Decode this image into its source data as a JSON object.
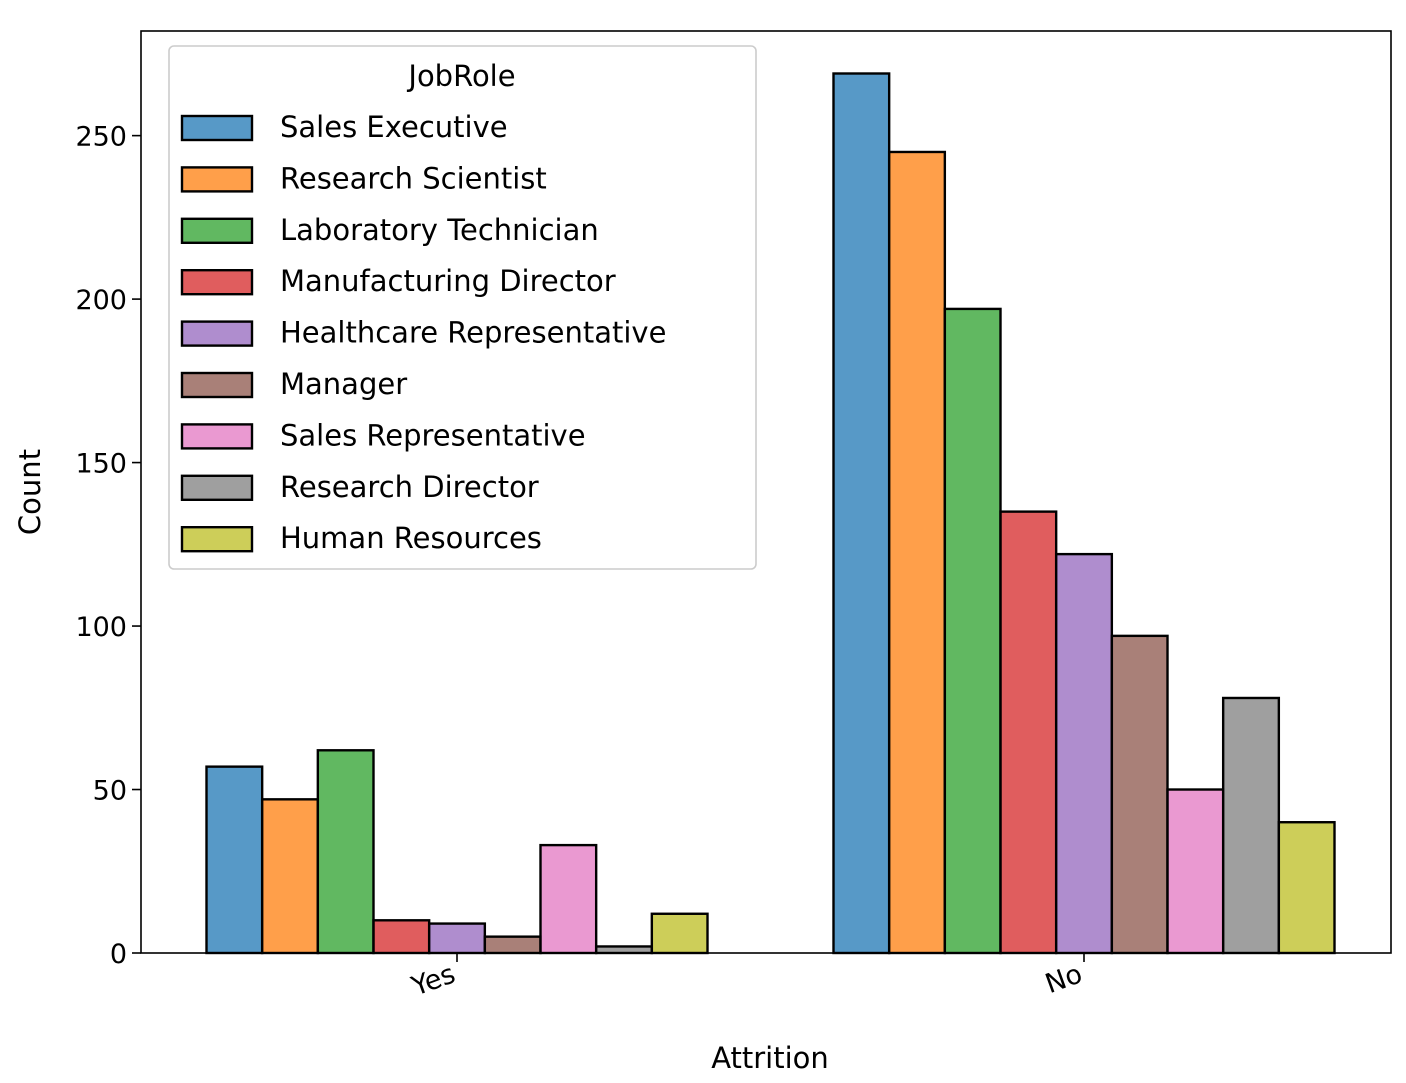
{
  "chart_data": {
    "type": "bar",
    "title": "",
    "xlabel": "Attrition",
    "ylabel": "Count",
    "categories": [
      "Yes",
      "No"
    ],
    "ylim": [
      0,
      282
    ],
    "yticks": [
      0,
      50,
      100,
      150,
      200,
      250
    ],
    "grid": false,
    "legend": {
      "title": "JobRole",
      "position": "top-left"
    },
    "series": [
      {
        "name": "Sales Executive",
        "color": "#1f77b4",
        "values": [
          57,
          269
        ]
      },
      {
        "name": "Research Scientist",
        "color": "#ff7f0e",
        "values": [
          47,
          245
        ]
      },
      {
        "name": "Laboratory Technician",
        "color": "#2ca02c",
        "values": [
          62,
          197
        ]
      },
      {
        "name": "Manufacturing Director",
        "color": "#d62728",
        "values": [
          10,
          135
        ]
      },
      {
        "name": "Healthcare Representative",
        "color": "#9467bd",
        "values": [
          9,
          122
        ]
      },
      {
        "name": "Manager",
        "color": "#8c564b",
        "values": [
          5,
          97
        ]
      },
      {
        "name": "Sales Representative",
        "color": "#e377c2",
        "values": [
          33,
          50
        ]
      },
      {
        "name": "Research Director",
        "color": "#7f7f7f",
        "values": [
          2,
          78
        ]
      },
      {
        "name": "Human Resources",
        "color": "#bcbd22",
        "values": [
          12,
          40
        ]
      }
    ]
  }
}
